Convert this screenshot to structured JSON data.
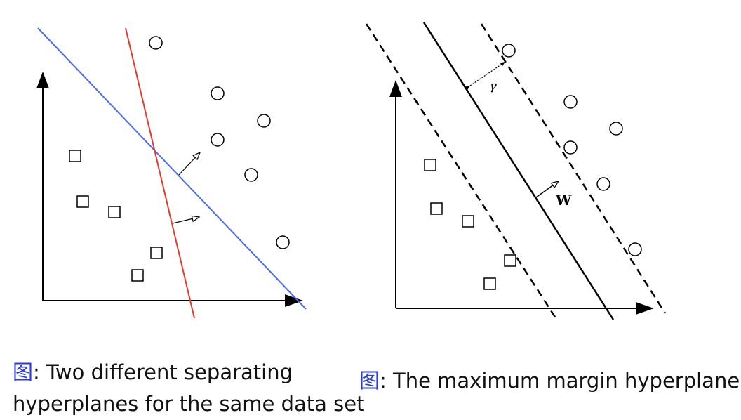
{
  "left_figure": {
    "caption_prefix": "图",
    "caption_line1": ": Two different separating",
    "caption_line2": "hyperplanes for the same data set",
    "colors": {
      "blue_hyperplane": "#4a6cf0",
      "red_hyperplane": "#e23b2e",
      "axes": "#000000"
    }
  },
  "right_figure": {
    "caption_prefix": "图",
    "caption_text": ": The maximum margin hyperplane",
    "margin_label": "γ",
    "normal_label": "W"
  }
}
